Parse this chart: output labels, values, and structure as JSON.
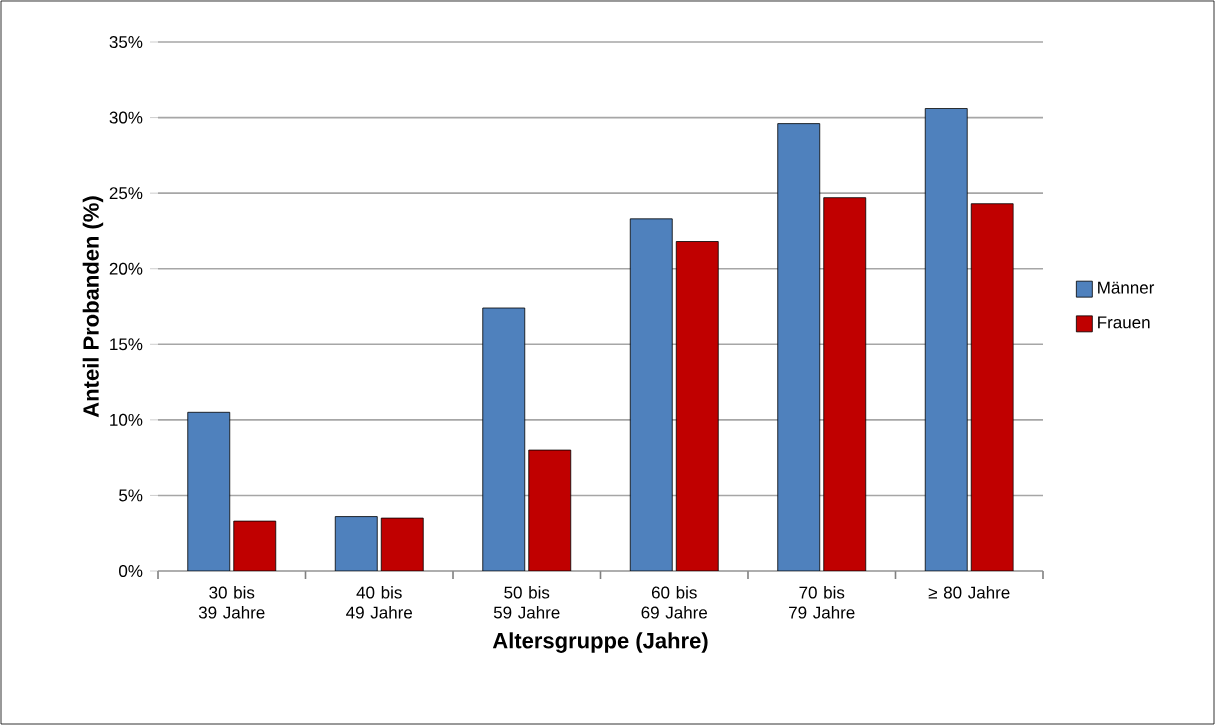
{
  "chart_data": {
    "type": "bar",
    "xlabel": "Altersgruppe (Jahre)",
    "ylabel": "Anteil Probanden (%)",
    "categories": [
      "30 bis 39 Jahre",
      "40 bis 49 Jahre",
      "50 bis 59 Jahre",
      "60 bis 69 Jahre",
      "70 bis 79 Jahre",
      "≥ 80 Jahre"
    ],
    "series": [
      {
        "name": "Männer",
        "color": "#4f81bd",
        "values": [
          10.5,
          3.6,
          17.4,
          23.3,
          29.6,
          30.6
        ]
      },
      {
        "name": "Frauen",
        "color": "#c00000",
        "values": [
          3.3,
          3.5,
          8.0,
          21.8,
          24.7,
          24.3
        ]
      }
    ],
    "ylim": [
      0,
      35
    ],
    "yticks": [
      {
        "value": 0,
        "label": "0%"
      },
      {
        "value": 5,
        "label": "5%"
      },
      {
        "value": 10,
        "label": "10%"
      },
      {
        "value": 15,
        "label": "15%"
      },
      {
        "value": 20,
        "label": "20%"
      },
      {
        "value": 25,
        "label": "25%"
      },
      {
        "value": 30,
        "label": "30%"
      },
      {
        "value": 35,
        "label": "35%"
      }
    ],
    "grid": "y",
    "legend": "right"
  }
}
